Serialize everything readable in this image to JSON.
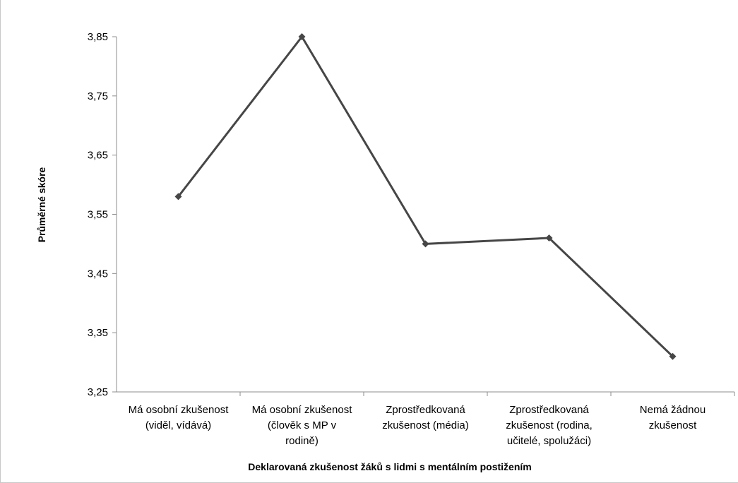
{
  "chart_data": {
    "type": "line",
    "title": "",
    "xlabel": "Deklarovaná zkušenost žáků s lidmi s mentálním postižením",
    "ylabel": "Průměrné skóre",
    "ylim": [
      3.25,
      3.85
    ],
    "yticks": [
      "3,25",
      "3,35",
      "3,45",
      "3,55",
      "3,65",
      "3,75",
      "3,85"
    ],
    "categories": [
      [
        "Má osobní zkušenost",
        "(viděl, vídává)"
      ],
      [
        "Má osobní zkušenost",
        "(člověk s MP v",
        "rodině)"
      ],
      [
        "Zprostředkovaná",
        "zkušenost (média)"
      ],
      [
        "Zprostředkovaná",
        "zkušenost (rodina,",
        "učitelé, spolužáci)"
      ],
      [
        "Nemá žádnou",
        "zkušenost"
      ]
    ],
    "series": [
      {
        "values": [
          3.58,
          3.85,
          3.5,
          3.51,
          3.31
        ]
      }
    ],
    "grid": false,
    "legend": "none",
    "line_color": "#464646"
  }
}
